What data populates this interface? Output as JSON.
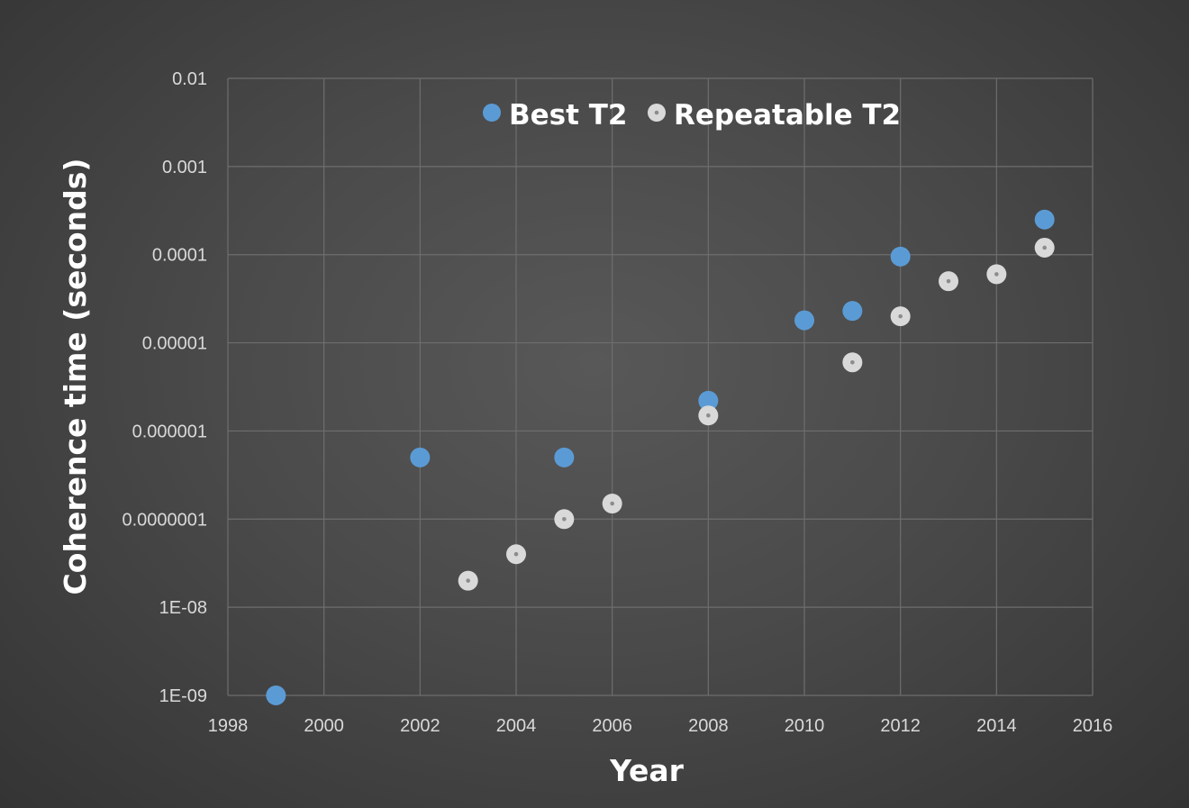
{
  "chart_data": {
    "type": "scatter",
    "xlabel": "Year",
    "ylabel": "Coherence time (seconds)",
    "x_scale": "linear",
    "y_scale": "log",
    "xlim": [
      1998,
      2016
    ],
    "ylim": [
      1e-09,
      0.01
    ],
    "x_ticks": [
      "1998",
      "2000",
      "2002",
      "2004",
      "2006",
      "2008",
      "2010",
      "2012",
      "2014",
      "2016"
    ],
    "y_ticks": [
      "1E-09",
      "1E-08",
      "0.0000001",
      "0.000001",
      "0.00001",
      "0.0001",
      "0.001",
      "0.01"
    ],
    "grid": true,
    "legend_position": "top-center",
    "series": [
      {
        "name": "Best T2",
        "color": "#5b9bd5",
        "points": [
          {
            "x": 1999,
            "y": 1e-09
          },
          {
            "x": 2002,
            "y": 5e-07
          },
          {
            "x": 2005,
            "y": 5e-07
          },
          {
            "x": 2008,
            "y": 2.2e-06
          },
          {
            "x": 2010,
            "y": 1.8e-05
          },
          {
            "x": 2011,
            "y": 2.3e-05
          },
          {
            "x": 2012,
            "y": 9.5e-05
          },
          {
            "x": 2015,
            "y": 0.00025
          }
        ]
      },
      {
        "name": "Repeatable T2",
        "color": "#d9d9d9",
        "points": [
          {
            "x": 2003,
            "y": 2e-08
          },
          {
            "x": 2004,
            "y": 4e-08
          },
          {
            "x": 2005,
            "y": 1e-07
          },
          {
            "x": 2006,
            "y": 1.5e-07
          },
          {
            "x": 2008,
            "y": 1.5e-06
          },
          {
            "x": 2011,
            "y": 6e-06
          },
          {
            "x": 2012,
            "y": 2e-05
          },
          {
            "x": 2013,
            "y": 5e-05
          },
          {
            "x": 2014,
            "y": 6e-05
          },
          {
            "x": 2015,
            "y": 0.00012
          }
        ]
      }
    ]
  }
}
